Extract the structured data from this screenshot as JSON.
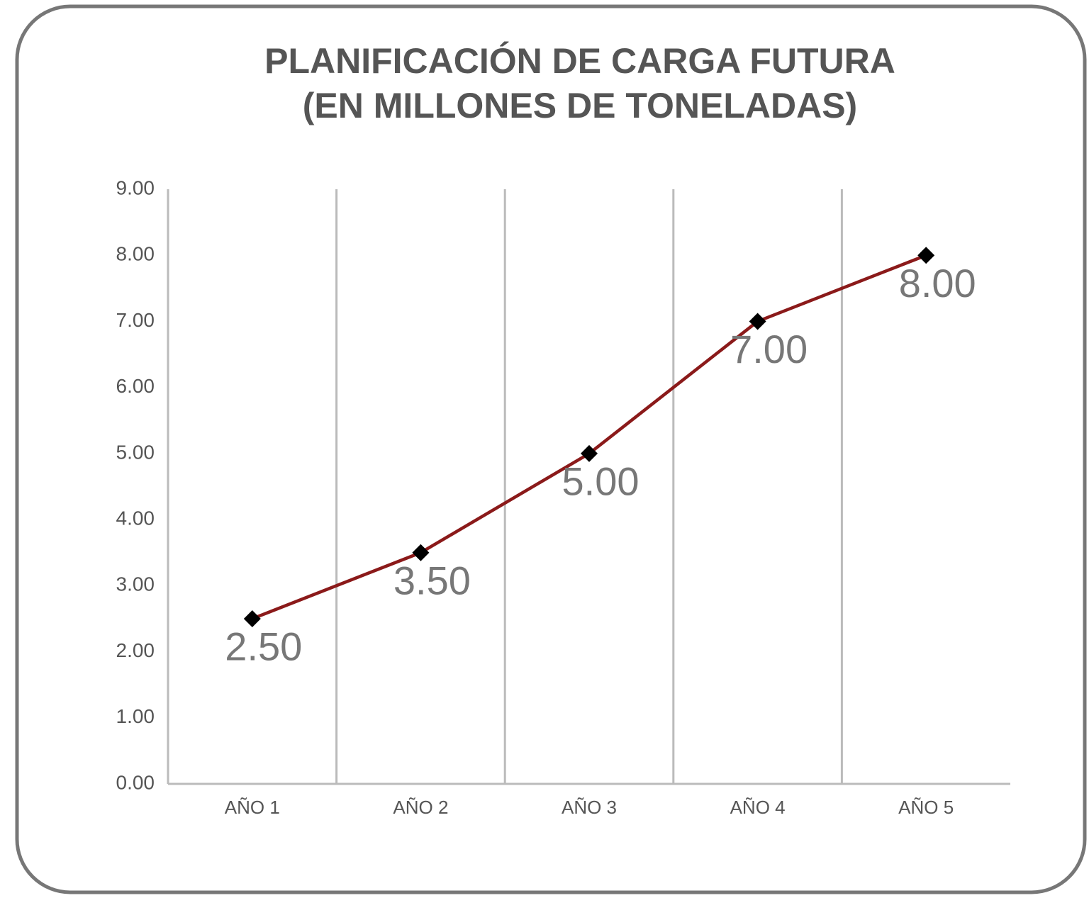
{
  "chart_data": {
    "type": "line",
    "title": [
      "PLANIFICACIÓN DE CARGA FUTURA",
      "(EN MILLONES DE TONELADAS)"
    ],
    "categories": [
      "AÑO 1",
      "AÑO 2",
      "AÑO 3",
      "AÑO 4",
      "AÑO 5"
    ],
    "series": [
      {
        "color": "#8b1a1a",
        "values": [
          2.5,
          3.5,
          5,
          7,
          8
        ],
        "value_labels": [
          "2.50",
          "3.50",
          "5.00",
          "7.00",
          "8.00"
        ]
      }
    ],
    "ylim": [
      0,
      9
    ],
    "yticks": [
      {
        "value": 0,
        "label": "0.00"
      },
      {
        "value": 1,
        "label": "1.00"
      },
      {
        "value": 2,
        "label": "2.00"
      },
      {
        "value": 3,
        "label": "3.00"
      },
      {
        "value": 4,
        "label": "4.00"
      },
      {
        "value": 5,
        "label": "5.00"
      },
      {
        "value": 6,
        "label": "6.00"
      },
      {
        "value": 7,
        "label": "7.00"
      },
      {
        "value": 8,
        "label": "8.00"
      },
      {
        "value": 9,
        "label": "9.00"
      }
    ],
    "grid": true
  }
}
